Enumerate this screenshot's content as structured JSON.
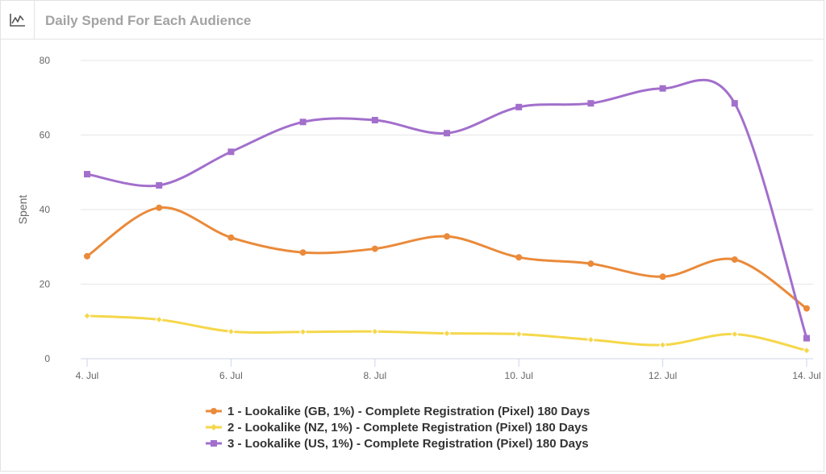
{
  "panel": {
    "title": "Daily Spend For Each Audience",
    "icon": "line-chart-icon"
  },
  "chart_data": {
    "type": "line",
    "title": "",
    "xlabel": "",
    "ylabel": "Spent",
    "ylim": [
      0,
      80
    ],
    "y_ticks": [
      0,
      20,
      40,
      60,
      80
    ],
    "x": [
      "4. Jul",
      "5. Jul",
      "6. Jul",
      "7. Jul",
      "8. Jul",
      "9. Jul",
      "10. Jul",
      "11. Jul",
      "12. Jul",
      "13. Jul",
      "14. Jul"
    ],
    "x_tick_labels": [
      "4. Jul",
      "6. Jul",
      "8. Jul",
      "10. Jul",
      "12. Jul",
      "14. Jul"
    ],
    "grid": true,
    "legend_position": "bottom-center",
    "series": [
      {
        "name": "1 - Lookalike (GB, 1%) - Complete Registration (Pixel) 180 Days",
        "color": "#ea8a3a",
        "marker": "circle",
        "values": [
          27.5,
          40.5,
          32.5,
          28.5,
          29.5,
          32.8,
          27.2,
          25.5,
          22,
          26.6,
          13.5
        ]
      },
      {
        "name": "2 - Lookalike (NZ, 1%) - Complete Registration (Pixel) 180 Days",
        "color": "#f5d74a",
        "marker": "diamond",
        "values": [
          11.5,
          10.5,
          7.3,
          7.2,
          7.3,
          6.8,
          6.6,
          5.1,
          3.7,
          6.6,
          2.2
        ]
      },
      {
        "name": "3 - Lookalike (US, 1%) - Complete Registration (Pixel) 180 Days",
        "color": "#a26fcc",
        "marker": "square",
        "values": [
          49.5,
          46.5,
          55.5,
          63.5,
          64,
          60.5,
          67.5,
          68.5,
          72.5,
          68.5,
          5.5
        ]
      }
    ]
  }
}
